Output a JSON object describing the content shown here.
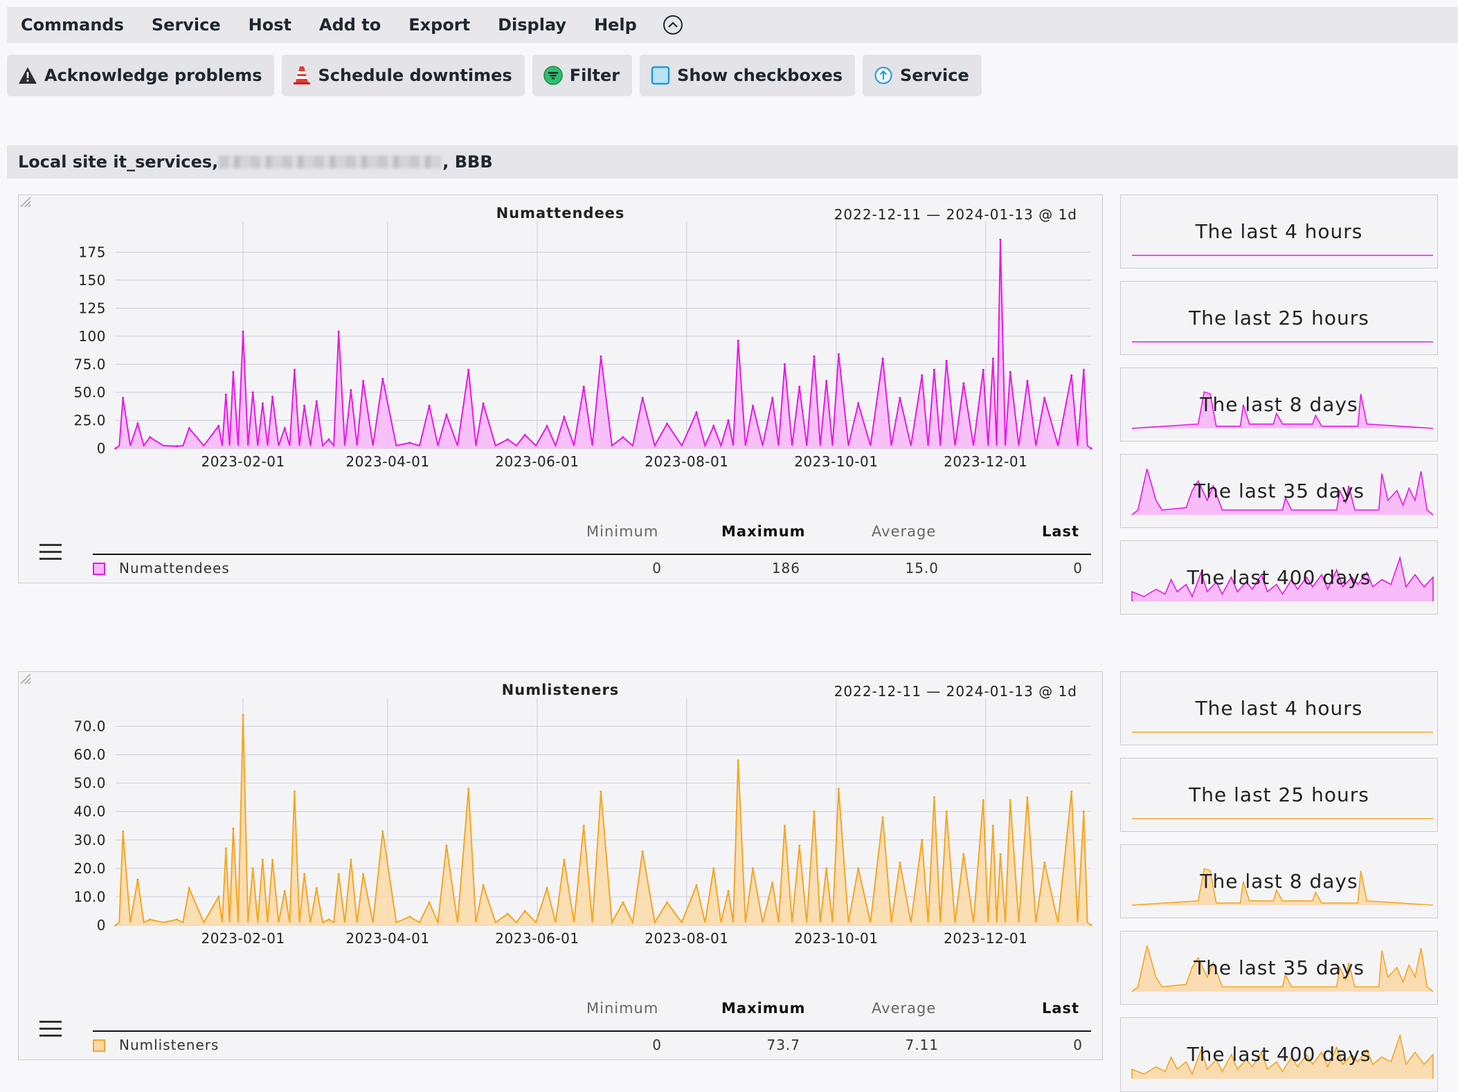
{
  "menubar": {
    "items": [
      "Commands",
      "Service",
      "Host",
      "Add to",
      "Export",
      "Display",
      "Help"
    ]
  },
  "toolbar": {
    "acknowledge": "Acknowledge problems",
    "downtimes": "Schedule downtimes",
    "filter": "Filter",
    "checkboxes": "Show checkboxes",
    "service": "Service"
  },
  "site": {
    "prefix": "Local site it_services,",
    "suffix": ", BBB"
  },
  "graphs": [
    {
      "title": "Numattendees",
      "range": "2022-12-11 — 2024-01-13 @ 1d",
      "color": "#e619e6",
      "fill": "#f8b6f8",
      "legend": {
        "name": "Numattendees",
        "minimum": "0",
        "maximum": "186",
        "average": "15.0",
        "last": "0"
      }
    },
    {
      "title": "Numlisteners",
      "range": "2022-12-11 — 2024-01-13 @ 1d",
      "color": "#f5a623",
      "fill": "#fad9a8",
      "legend": {
        "name": "Numlisteners",
        "minimum": "0",
        "maximum": "73.7",
        "average": "7.11",
        "last": "0"
      }
    }
  ],
  "legend_headers": {
    "minimum": "Minimum",
    "maximum": "Maximum",
    "average": "Average",
    "last": "Last"
  },
  "mini_labels": [
    "The last 4 hours",
    "The last 25 hours",
    "The last 8 days",
    "The last 35 days",
    "The last 400 days"
  ],
  "chart_data": [
    {
      "type": "area",
      "title": "Numattendees",
      "x_range": [
        "2022-12-11",
        "2024-01-13"
      ],
      "x_ticks": [
        "2023-02-01",
        "2023-04-01",
        "2023-06-01",
        "2023-08-01",
        "2023-10-01",
        "2023-12-01"
      ],
      "y_ticks": [
        "0",
        "25.0",
        "50.0",
        "75.0",
        "100",
        "125",
        "150",
        "175"
      ],
      "ylim": [
        0,
        190
      ],
      "grid": true,
      "series": [
        {
          "name": "Numattendees",
          "points": [
            [
              "2022-12-11",
              0
            ],
            [
              "2022-12-14",
              45
            ],
            [
              "2022-12-20",
              22
            ],
            [
              "2022-12-25",
              10
            ],
            [
              "2023-01-05",
              2
            ],
            [
              "2023-01-10",
              18
            ],
            [
              "2023-01-22",
              20
            ],
            [
              "2023-01-25",
              48
            ],
            [
              "2023-01-28",
              68
            ],
            [
              "2023-02-01",
              104
            ],
            [
              "2023-02-05",
              50
            ],
            [
              "2023-02-09",
              40
            ],
            [
              "2023-02-13",
              46
            ],
            [
              "2023-02-18",
              18
            ],
            [
              "2023-02-22",
              70
            ],
            [
              "2023-02-26",
              38
            ],
            [
              "2023-03-03",
              42
            ],
            [
              "2023-03-08",
              8
            ],
            [
              "2023-03-12",
              104
            ],
            [
              "2023-03-17",
              52
            ],
            [
              "2023-03-22",
              60
            ],
            [
              "2023-03-30",
              62
            ],
            [
              "2023-04-10",
              5
            ],
            [
              "2023-04-18",
              38
            ],
            [
              "2023-04-25",
              30
            ],
            [
              "2023-05-04",
              70
            ],
            [
              "2023-05-10",
              40
            ],
            [
              "2023-05-20",
              8
            ],
            [
              "2023-05-27",
              12
            ],
            [
              "2023-06-05",
              20
            ],
            [
              "2023-06-12",
              28
            ],
            [
              "2023-06-20",
              55
            ],
            [
              "2023-06-27",
              82
            ],
            [
              "2023-07-06",
              10
            ],
            [
              "2023-07-14",
              45
            ],
            [
              "2023-07-24",
              22
            ],
            [
              "2023-08-05",
              32
            ],
            [
              "2023-08-12",
              20
            ],
            [
              "2023-08-18",
              25
            ],
            [
              "2023-08-22",
              96
            ],
            [
              "2023-08-28",
              38
            ],
            [
              "2023-09-05",
              45
            ],
            [
              "2023-09-10",
              75
            ],
            [
              "2023-09-16",
              55
            ],
            [
              "2023-09-22",
              82
            ],
            [
              "2023-09-27",
              60
            ],
            [
              "2023-10-02",
              84
            ],
            [
              "2023-10-10",
              40
            ],
            [
              "2023-10-20",
              80
            ],
            [
              "2023-10-27",
              45
            ],
            [
              "2023-11-05",
              65
            ],
            [
              "2023-11-10",
              70
            ],
            [
              "2023-11-15",
              78
            ],
            [
              "2023-11-22",
              58
            ],
            [
              "2023-11-30",
              70
            ],
            [
              "2023-12-04",
              80
            ],
            [
              "2023-12-07",
              186
            ],
            [
              "2023-12-11",
              68
            ],
            [
              "2023-12-18",
              60
            ],
            [
              "2023-12-25",
              45
            ],
            [
              "2024-01-05",
              65
            ],
            [
              "2024-01-10",
              70
            ],
            [
              "2024-01-13",
              0
            ]
          ]
        }
      ]
    },
    {
      "type": "area",
      "title": "Numlisteners",
      "x_range": [
        "2022-12-11",
        "2024-01-13"
      ],
      "x_ticks": [
        "2023-02-01",
        "2023-04-01",
        "2023-06-01",
        "2023-08-01",
        "2023-10-01",
        "2023-12-01"
      ],
      "y_ticks": [
        "0",
        "10.0",
        "20.0",
        "30.0",
        "40.0",
        "50.0",
        "60.0",
        "70.0"
      ],
      "ylim": [
        0,
        75
      ],
      "grid": true,
      "series": [
        {
          "name": "Numlisteners",
          "points": [
            [
              "2022-12-11",
              0
            ],
            [
              "2022-12-14",
              33
            ],
            [
              "2022-12-20",
              16
            ],
            [
              "2022-12-25",
              2
            ],
            [
              "2023-01-05",
              2
            ],
            [
              "2023-01-10",
              13
            ],
            [
              "2023-01-22",
              10
            ],
            [
              "2023-01-25",
              27
            ],
            [
              "2023-01-28",
              34
            ],
            [
              "2023-02-01",
              74
            ],
            [
              "2023-02-05",
              20
            ],
            [
              "2023-02-09",
              23
            ],
            [
              "2023-02-13",
              23
            ],
            [
              "2023-02-18",
              12
            ],
            [
              "2023-02-22",
              47
            ],
            [
              "2023-02-26",
              18
            ],
            [
              "2023-03-03",
              13
            ],
            [
              "2023-03-08",
              2
            ],
            [
              "2023-03-12",
              18
            ],
            [
              "2023-03-17",
              23
            ],
            [
              "2023-03-22",
              18
            ],
            [
              "2023-03-30",
              33
            ],
            [
              "2023-04-10",
              3
            ],
            [
              "2023-04-18",
              8
            ],
            [
              "2023-04-25",
              28
            ],
            [
              "2023-05-04",
              48
            ],
            [
              "2023-05-10",
              14
            ],
            [
              "2023-05-20",
              4
            ],
            [
              "2023-05-27",
              5
            ],
            [
              "2023-06-05",
              13
            ],
            [
              "2023-06-12",
              23
            ],
            [
              "2023-06-20",
              35
            ],
            [
              "2023-06-27",
              47
            ],
            [
              "2023-07-06",
              8
            ],
            [
              "2023-07-14",
              26
            ],
            [
              "2023-07-24",
              8
            ],
            [
              "2023-08-05",
              14
            ],
            [
              "2023-08-12",
              20
            ],
            [
              "2023-08-18",
              12
            ],
            [
              "2023-08-22",
              58
            ],
            [
              "2023-08-28",
              20
            ],
            [
              "2023-09-05",
              15
            ],
            [
              "2023-09-10",
              35
            ],
            [
              "2023-09-16",
              28
            ],
            [
              "2023-09-22",
              40
            ],
            [
              "2023-09-27",
              20
            ],
            [
              "2023-10-02",
              48
            ],
            [
              "2023-10-10",
              20
            ],
            [
              "2023-10-20",
              38
            ],
            [
              "2023-10-27",
              22
            ],
            [
              "2023-11-05",
              30
            ],
            [
              "2023-11-10",
              45
            ],
            [
              "2023-11-15",
              40
            ],
            [
              "2023-11-22",
              25
            ],
            [
              "2023-11-30",
              44
            ],
            [
              "2023-12-04",
              35
            ],
            [
              "2023-12-07",
              25
            ],
            [
              "2023-12-11",
              44
            ],
            [
              "2023-12-18",
              45
            ],
            [
              "2023-12-25",
              22
            ],
            [
              "2024-01-05",
              47
            ],
            [
              "2024-01-10",
              40
            ],
            [
              "2024-01-13",
              0
            ]
          ]
        }
      ]
    }
  ]
}
